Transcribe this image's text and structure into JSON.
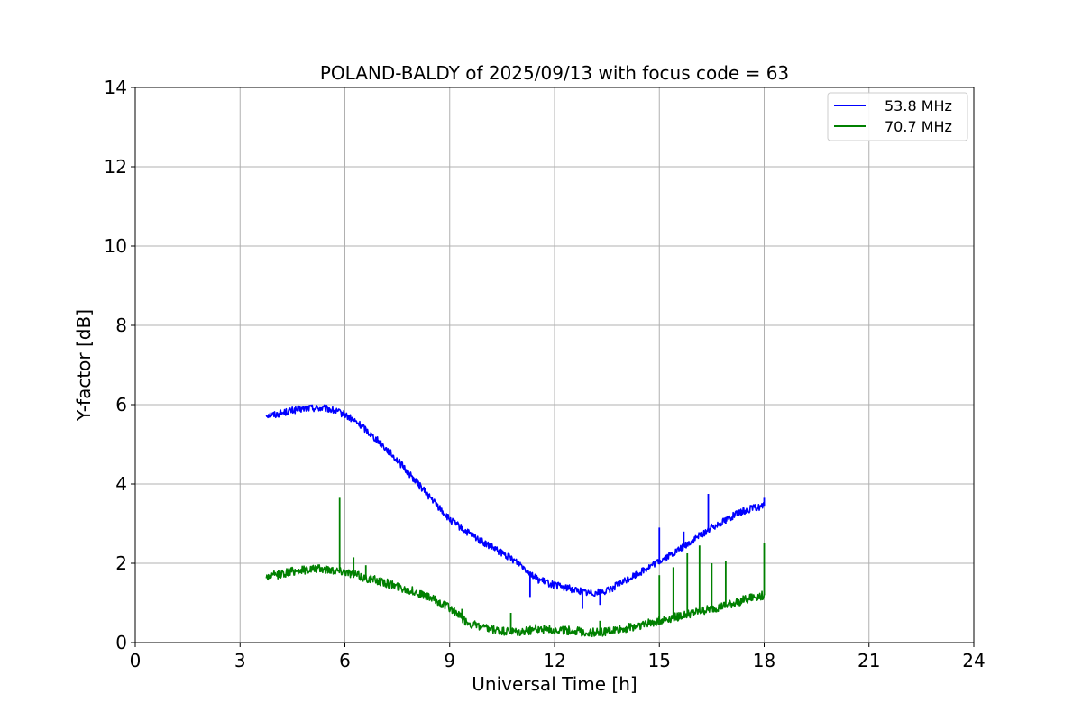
{
  "chart_data": {
    "type": "line",
    "title": "POLAND-BALDY of 2025/09/13 with focus code = 63",
    "xlabel": "Universal Time [h]",
    "ylabel": "Y-factor [dB]",
    "xlim": [
      0,
      24
    ],
    "ylim": [
      0,
      14
    ],
    "xticks": [
      0,
      3,
      6,
      9,
      12,
      15,
      18,
      21,
      24
    ],
    "yticks": [
      0,
      2,
      4,
      6,
      8,
      10,
      12,
      14
    ],
    "grid": true,
    "legend_position": "top-right",
    "series": [
      {
        "name": "53.8 MHz",
        "color": "#0000ff",
        "x": [
          3.75,
          4.0,
          4.5,
          5.0,
          5.5,
          6.0,
          6.5,
          7.0,
          7.5,
          8.0,
          8.5,
          9.0,
          9.5,
          10.0,
          10.5,
          11.0,
          11.5,
          12.0,
          12.5,
          13.0,
          13.5,
          14.0,
          14.5,
          15.0,
          15.5,
          16.0,
          16.5,
          17.0,
          17.5,
          18.0
        ],
        "y": [
          5.75,
          5.75,
          5.85,
          5.92,
          5.9,
          5.75,
          5.45,
          5.05,
          4.6,
          4.1,
          3.6,
          3.1,
          2.78,
          2.5,
          2.25,
          2.0,
          1.6,
          1.45,
          1.35,
          1.25,
          1.3,
          1.55,
          1.8,
          2.05,
          2.3,
          2.6,
          2.9,
          3.15,
          3.35,
          3.45
        ],
        "spikes": [
          [
            11.3,
            1.15
          ],
          [
            12.8,
            0.85
          ],
          [
            13.3,
            0.95
          ],
          [
            15.0,
            2.9
          ],
          [
            15.7,
            2.8
          ],
          [
            16.4,
            3.75
          ],
          [
            16.9,
            3.0
          ],
          [
            18.0,
            3.65
          ]
        ]
      },
      {
        "name": "70.7 MHz",
        "color": "#008000",
        "x": [
          3.75,
          4.0,
          4.5,
          5.0,
          5.5,
          6.0,
          6.5,
          7.0,
          7.5,
          8.0,
          8.5,
          9.0,
          9.5,
          10.0,
          10.5,
          11.0,
          11.5,
          12.0,
          12.5,
          13.0,
          13.5,
          14.0,
          14.5,
          15.0,
          15.5,
          16.0,
          16.5,
          17.0,
          17.5,
          18.0
        ],
        "y": [
          1.65,
          1.7,
          1.8,
          1.85,
          1.85,
          1.8,
          1.65,
          1.55,
          1.42,
          1.28,
          1.1,
          0.88,
          0.5,
          0.35,
          0.28,
          0.25,
          0.35,
          0.32,
          0.3,
          0.25,
          0.28,
          0.35,
          0.45,
          0.55,
          0.65,
          0.75,
          0.85,
          0.95,
          1.1,
          1.2
        ],
        "spikes": [
          [
            5.85,
            3.65
          ],
          [
            6.25,
            2.15
          ],
          [
            6.6,
            1.95
          ],
          [
            9.35,
            0.85
          ],
          [
            10.75,
            0.75
          ],
          [
            13.3,
            0.55
          ],
          [
            15.0,
            1.7
          ],
          [
            15.4,
            1.9
          ],
          [
            15.8,
            2.25
          ],
          [
            16.15,
            2.45
          ],
          [
            16.5,
            2.0
          ],
          [
            16.9,
            2.05
          ],
          [
            18.0,
            2.5
          ]
        ]
      }
    ]
  }
}
